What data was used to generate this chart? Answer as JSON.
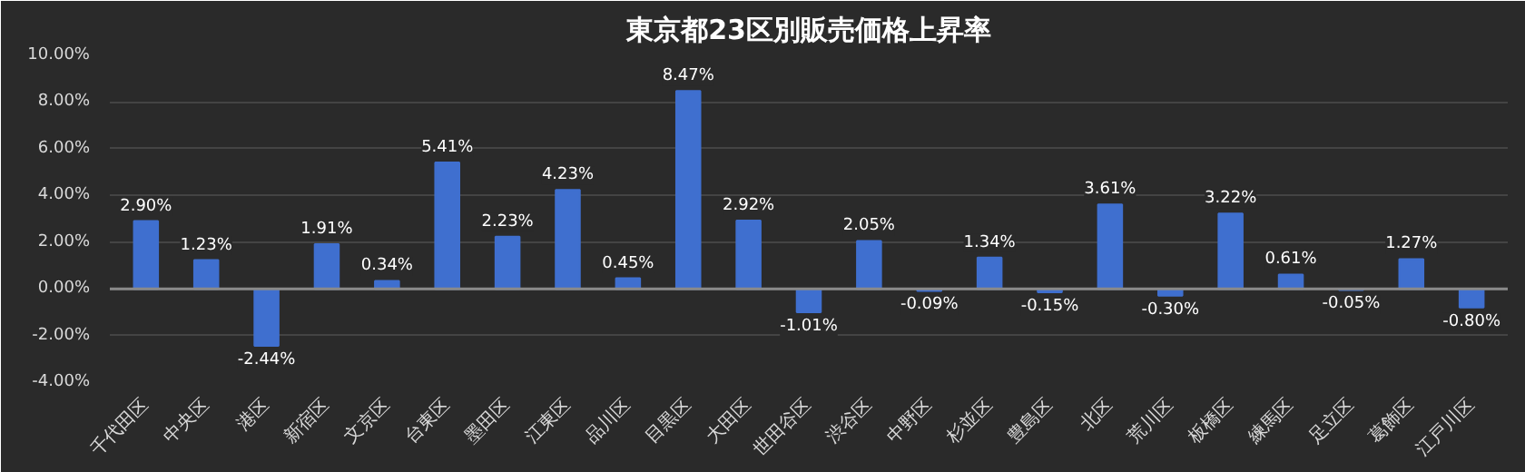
{
  "chart_data": {
    "type": "bar",
    "title": "東京都23区別販売価格上昇率",
    "categories": [
      "千代田区",
      "中央区",
      "港区",
      "新宿区",
      "文京区",
      "台東区",
      "墨田区",
      "江東区",
      "品川区",
      "目黒区",
      "大田区",
      "世田谷区",
      "渋谷区",
      "中野区",
      "杉並区",
      "豊島区",
      "北区",
      "荒川区",
      "板橋区",
      "練馬区",
      "足立区",
      "葛飾区",
      "江戸川区"
    ],
    "values": [
      2.9,
      1.23,
      -2.44,
      1.91,
      0.34,
      5.41,
      2.23,
      4.23,
      0.45,
      8.47,
      2.92,
      -1.01,
      2.05,
      -0.09,
      1.34,
      -0.15,
      3.61,
      -0.3,
      3.22,
      0.61,
      -0.05,
      1.27,
      -0.8
    ],
    "value_labels": [
      "2.90%",
      "1.23%",
      "-2.44%",
      "1.91%",
      "0.34%",
      "5.41%",
      "2.23%",
      "4.23%",
      "0.45%",
      "8.47%",
      "2.92%",
      "-1.01%",
      "2.05%",
      "-0.09%",
      "1.34%",
      "-0.15%",
      "3.61%",
      "-0.30%",
      "3.22%",
      "0.61%",
      "-0.05%",
      "1.27%",
      "-0.80%"
    ],
    "color": "#3f6fcf",
    "ylim": [
      -4,
      10
    ],
    "yticks": [
      {
        "value": -4,
        "label": "-4.00%"
      },
      {
        "value": -2,
        "label": "-2.00%"
      },
      {
        "value": 0,
        "label": "0.00%"
      },
      {
        "value": 2,
        "label": "2.00%"
      },
      {
        "value": 4,
        "label": "4.00%"
      },
      {
        "value": 6,
        "label": "6.00%"
      },
      {
        "value": 8,
        "label": "8.00%"
      },
      {
        "value": 10,
        "label": "10.00%"
      }
    ],
    "grid": "y"
  }
}
